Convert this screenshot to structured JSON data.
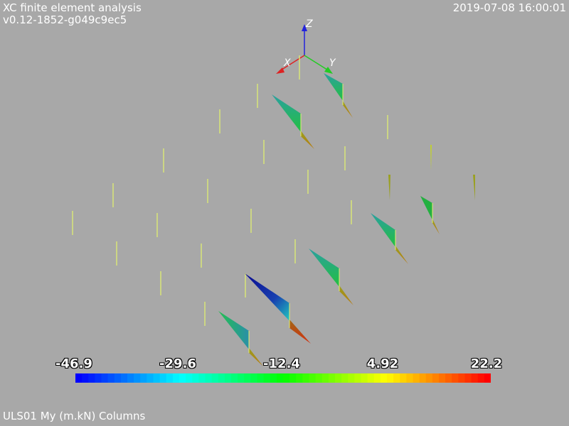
{
  "header": {
    "title": "XC finite element analysis",
    "version": "v0.12-1852-g049c9ec5",
    "timestamp": "2019-07-08 16:00:01"
  },
  "axes": {
    "x_label": "X",
    "y_label": "Y",
    "z_label": "Z",
    "x_color": "#dd2222",
    "y_color": "#22cc22",
    "z_color": "#2222dd"
  },
  "legend": {
    "tick_labels": [
      "-46.9",
      "-29.6",
      "-12.4",
      "4.92",
      "22.2"
    ],
    "colormap": [
      "#0000ff",
      "#00ffff",
      "#00ff00",
      "#ffff00",
      "#ff0000"
    ]
  },
  "footer": {
    "caption": "ULS01 My (m.kN) Columns"
  }
}
